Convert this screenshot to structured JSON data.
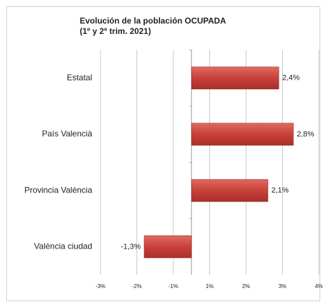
{
  "chart_data": {
    "type": "bar",
    "orientation": "horizontal",
    "title": "Evolución de la población OCUPADA",
    "subtitle": "(1º y 2º trim. 2021)",
    "categories": [
      "Estatal",
      "País Valencià",
      "Provincia València",
      "València ciudad"
    ],
    "values": [
      2.4,
      2.8,
      2.1,
      -1.3
    ],
    "value_labels": [
      "2,4%",
      "2,8%",
      "2,1%",
      "-1,3%"
    ],
    "color": "#c8413a",
    "xlim": [
      -2.5,
      3.5
    ],
    "xticks": [
      {
        "value": -2.5,
        "label": "-3%"
      },
      {
        "value": -1.5,
        "label": "-2%"
      },
      {
        "value": -0.5,
        "label": "-1%"
      },
      {
        "value": 0.5,
        "label": "1%"
      },
      {
        "value": 1.5,
        "label": "2%"
      },
      {
        "value": 2.5,
        "label": "3%"
      },
      {
        "value": 3.5,
        "label": "4%"
      }
    ],
    "grid": true
  }
}
